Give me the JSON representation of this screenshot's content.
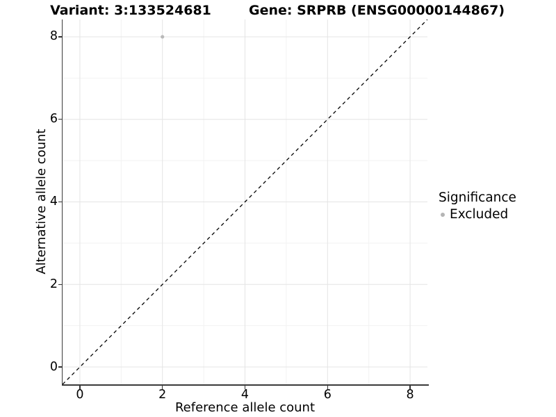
{
  "chart_data": {
    "type": "scatter",
    "titles": [
      "Variant: 3:133524681",
      "Gene: SRPRB (ENSG00000144867)"
    ],
    "xlabel": "Reference allele count",
    "ylabel": "Alternative allele count",
    "x_ticks": [
      0,
      2,
      4,
      6,
      8
    ],
    "y_ticks": [
      0,
      2,
      4,
      6,
      8
    ],
    "x_minor": [
      1,
      3,
      5,
      7
    ],
    "y_minor": [
      1,
      3,
      5,
      7
    ],
    "xlim": [
      -0.42,
      8.42
    ],
    "ylim": [
      -0.42,
      8.42
    ],
    "grid": "major and minor gridlines on white panel, axis lines left and bottom only",
    "points": [
      {
        "x": 2,
        "y": 8,
        "significance": "Excluded",
        "color": "#b9b9b9",
        "radius": 2.6
      }
    ],
    "identity_line": {
      "from": [
        -0.42,
        -0.42
      ],
      "to": [
        8.42,
        8.42
      ],
      "style": "dashed",
      "color": "#000000",
      "width": 1.3
    },
    "legend": {
      "position": "right",
      "title": "Significance",
      "entries": [
        {
          "label": "Excluded",
          "color": "#b5b5b5"
        }
      ]
    },
    "colors": {
      "grid_major": "#e4e4e4",
      "grid_minor": "#f2f2f2",
      "axis_line": "#3a3a3a",
      "tick_mark": "#333333",
      "text": "#000000",
      "background": "#ffffff"
    }
  }
}
